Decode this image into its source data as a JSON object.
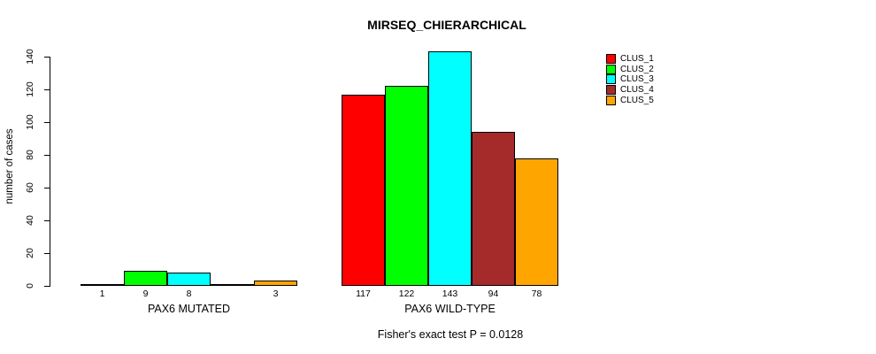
{
  "chart_data": {
    "type": "bar",
    "title": "MIRSEQ_CHIERARCHICAL",
    "ylabel": "number of cases",
    "subtitle": "Fisher's exact test P = 0.0128",
    "ylim": [
      0,
      140
    ],
    "yticks": [
      0,
      20,
      40,
      60,
      80,
      100,
      120,
      140
    ],
    "grid": false,
    "legend_position": "right",
    "series": [
      {
        "name": "CLUS_1",
        "color": "#FF0000"
      },
      {
        "name": "CLUS_2",
        "color": "#00FF00"
      },
      {
        "name": "CLUS_3",
        "color": "#00FFFF"
      },
      {
        "name": "CLUS_4",
        "color": "#A52A2A"
      },
      {
        "name": "CLUS_5",
        "color": "#FFA500"
      }
    ],
    "groups": [
      {
        "label": "PAX6 MUTATED",
        "values": [
          1,
          9,
          8,
          0,
          3
        ],
        "bar_labels": [
          "1",
          "9",
          "8",
          "",
          "3"
        ]
      },
      {
        "label": "PAX6 WILD-TYPE",
        "values": [
          117,
          122,
          143,
          94,
          78
        ],
        "bar_labels": [
          "117",
          "122",
          "143",
          "94",
          "78"
        ]
      }
    ]
  }
}
